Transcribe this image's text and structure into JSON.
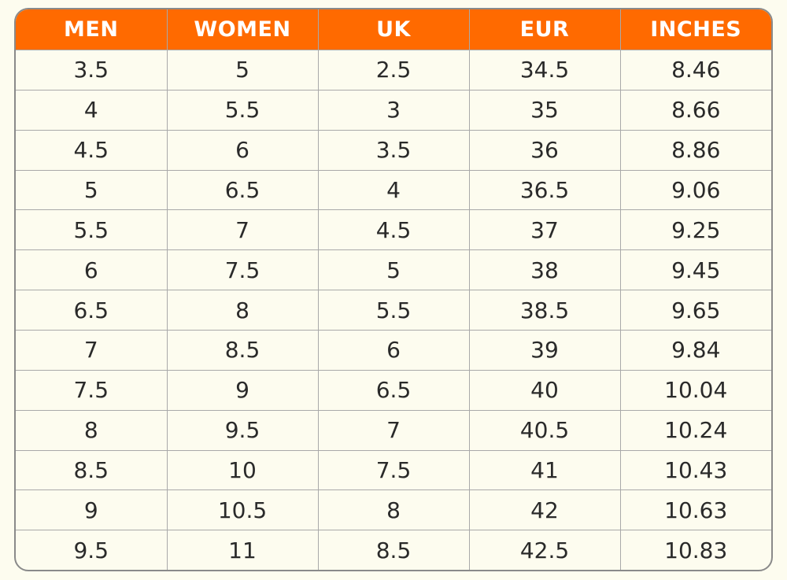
{
  "table": {
    "headers": [
      "MEN",
      "WOMEN",
      "UK",
      "EUR",
      "INCHES"
    ],
    "rows": [
      [
        "3.5",
        "5",
        "2.5",
        "34.5",
        "8.46"
      ],
      [
        "4",
        "5.5",
        "3",
        "35",
        "8.66"
      ],
      [
        "4.5",
        "6",
        "3.5",
        "36",
        "8.86"
      ],
      [
        "5",
        "6.5",
        "4",
        "36.5",
        "9.06"
      ],
      [
        "5.5",
        "7",
        "4.5",
        "37",
        "9.25"
      ],
      [
        "6",
        "7.5",
        "5",
        "38",
        "9.45"
      ],
      [
        "6.5",
        "8",
        "5.5",
        "38.5",
        "9.65"
      ],
      [
        "7",
        "8.5",
        "6",
        "39",
        "9.84"
      ],
      [
        "7.5",
        "9",
        "6.5",
        "40",
        "10.04"
      ],
      [
        "8",
        "9.5",
        "7",
        "40.5",
        "10.24"
      ],
      [
        "8.5",
        "10",
        "7.5",
        "41",
        "10.43"
      ],
      [
        "9",
        "10.5",
        "8",
        "42",
        "10.63"
      ],
      [
        "9.5",
        "11",
        "8.5",
        "42.5",
        "10.83"
      ]
    ]
  },
  "colors": {
    "header_bg": "#ff6a00",
    "header_text": "#ffffff",
    "body_bg": "#fdfcef",
    "grid": "#a9a9a9"
  }
}
